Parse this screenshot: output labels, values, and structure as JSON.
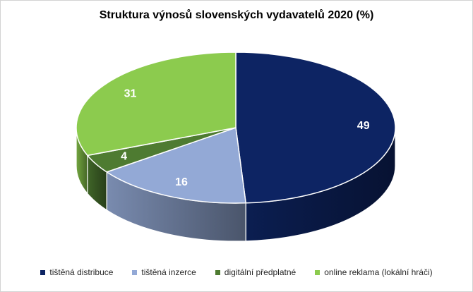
{
  "window": {
    "background": "#FFFFFF",
    "border_color": "#D3D3D3"
  },
  "title": "Struktura výnosů slovenských vydavatelů 2020 (%)",
  "chart_data": {
    "type": "pie",
    "style": "3d",
    "title": "Struktura výnosů slovenských vydavatelů 2020 (%)",
    "unit": "percent",
    "direction": "clockwise",
    "start_angle_deg": 0,
    "legend_position": "bottom",
    "data_labels_style": "inside, white, bold",
    "categories": [
      "tištěná distribuce",
      "tištěná inzerce",
      "digitální předplatné",
      "online reklama (lokální hráči)"
    ],
    "values": [
      49,
      16,
      4,
      31
    ],
    "colors": [
      "#0D2463",
      "#93A9D6",
      "#4E7B31",
      "#8CCB4E"
    ],
    "label_color": "#FFFFFF"
  },
  "legend": {
    "items": [
      {
        "label": "tištěná distribuce",
        "color": "#0D2463"
      },
      {
        "label": "tištěná inzerce",
        "color": "#93A9D6"
      },
      {
        "label": "digitální předplatné",
        "color": "#4E7B31"
      },
      {
        "label": "online reklama (lokální hráči)",
        "color": "#8CCB4E"
      }
    ]
  }
}
